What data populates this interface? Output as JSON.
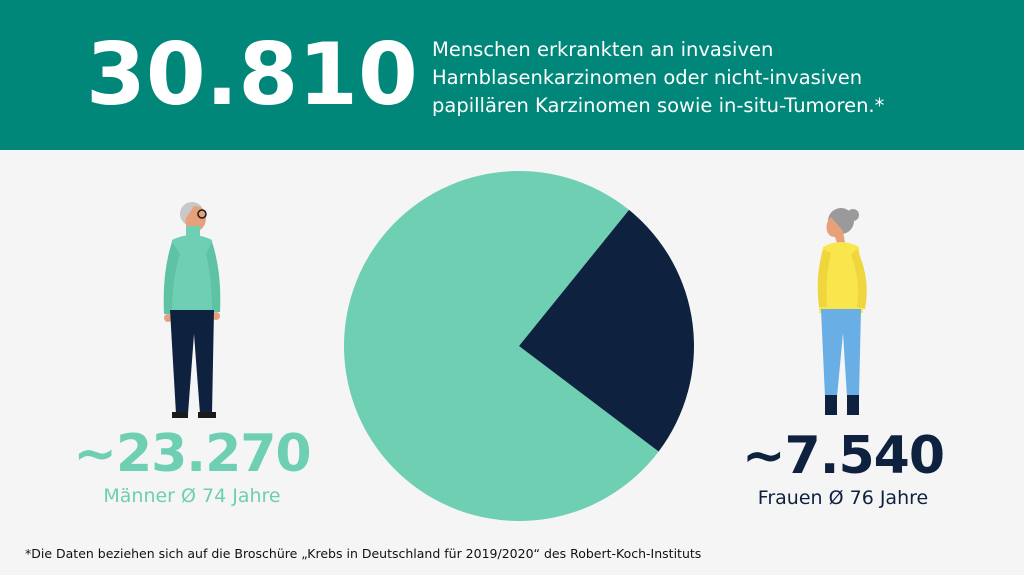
{
  "header": {
    "total": "30.810",
    "description_lines": [
      "Menschen erkrankten an invasiven",
      "Harnblasenkarzinomen oder nicht-invasiven",
      "papillären Karzinomen sowie in-situ-Tumoren.*"
    ]
  },
  "men": {
    "value": "~23.270",
    "label": "Männer Ø 74 Jahre"
  },
  "women": {
    "value": "~7.540",
    "label": "Frauen Ø 76 Jahre"
  },
  "footnote": "*Die Daten beziehen sich auf die Broschüre „Krebs in Deutschland für 2019/2020“ des Robert-Koch-Instituts",
  "colors": {
    "header_bg": "#008779",
    "men": "#6ecfb3",
    "women": "#0e2240",
    "background": "#f5f5f5"
  },
  "chart_data": {
    "type": "pie",
    "categories": [
      "Männer",
      "Frauen"
    ],
    "values": [
      23270,
      7540
    ],
    "colors": [
      "#6ecfb3",
      "#0e2240"
    ],
    "title": "",
    "legend": "none"
  }
}
